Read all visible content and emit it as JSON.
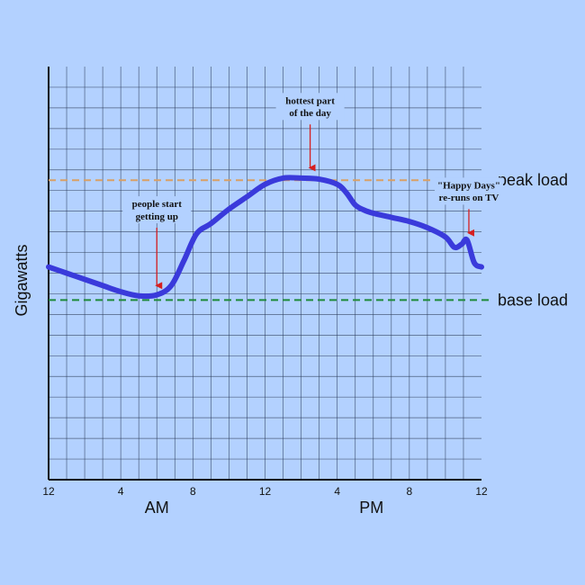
{
  "chart_data": {
    "type": "line",
    "title": "",
    "xlabel": "",
    "ylabel": "Gigawatts",
    "x_range": [
      0,
      24
    ],
    "y_range": [
      0,
      20
    ],
    "grid": true,
    "x_ticks": [
      {
        "x": 0,
        "label": "12"
      },
      {
        "x": 4,
        "label": "4"
      },
      {
        "x": 8,
        "label": "8"
      },
      {
        "x": 12,
        "label": "12"
      },
      {
        "x": 16,
        "label": "4"
      },
      {
        "x": 20,
        "label": "8"
      },
      {
        "x": 24,
        "label": "12"
      }
    ],
    "periods": [
      {
        "label": "AM",
        "x": 6
      },
      {
        "label": "PM",
        "x": 17.9
      }
    ],
    "reference_lines": [
      {
        "name": "peak load",
        "y": 14.5,
        "color": "#d9a066"
      },
      {
        "name": "base load",
        "y": 8.7,
        "color": "#1f8a3a"
      }
    ],
    "series": [
      {
        "color": "#3a3adb",
        "points": [
          [
            0,
            10.3
          ],
          [
            1,
            10.0
          ],
          [
            2,
            9.7
          ],
          [
            3,
            9.4
          ],
          [
            4,
            9.1
          ],
          [
            5,
            8.9
          ],
          [
            6,
            8.95
          ],
          [
            6.8,
            9.4
          ],
          [
            7.5,
            10.6
          ],
          [
            8.2,
            11.9
          ],
          [
            9,
            12.4
          ],
          [
            10,
            13.1
          ],
          [
            11,
            13.7
          ],
          [
            12,
            14.3
          ],
          [
            13,
            14.6
          ],
          [
            14,
            14.6
          ],
          [
            15,
            14.55
          ],
          [
            16,
            14.3
          ],
          [
            16.5,
            13.9
          ],
          [
            17,
            13.3
          ],
          [
            17.5,
            13.05
          ],
          [
            18,
            12.9
          ],
          [
            19,
            12.7
          ],
          [
            20,
            12.5
          ],
          [
            21,
            12.2
          ],
          [
            22,
            11.75
          ],
          [
            22.5,
            11.25
          ],
          [
            22.9,
            11.4
          ],
          [
            23.2,
            11.6
          ],
          [
            23.6,
            10.5
          ],
          [
            24,
            10.3
          ]
        ]
      }
    ],
    "annotations": [
      {
        "lines": [
          "people start",
          "getting up"
        ],
        "x": 6,
        "tip_y": 9.05,
        "text_y": [
          13.2,
          12.6
        ],
        "arrow_top": 12.2
      },
      {
        "lines": [
          "hottest part",
          "of the day"
        ],
        "x": 14.5,
        "tip_y": 14.75,
        "text_y": [
          18.2,
          17.6
        ],
        "arrow_top": 17.2
      },
      {
        "lines": [
          "\"Happy Days\"",
          "re-runs on TV"
        ],
        "x": 23.3,
        "tip_y": 11.6,
        "text_y": [
          14.1,
          13.5
        ],
        "arrow_top": 13.1
      }
    ]
  }
}
